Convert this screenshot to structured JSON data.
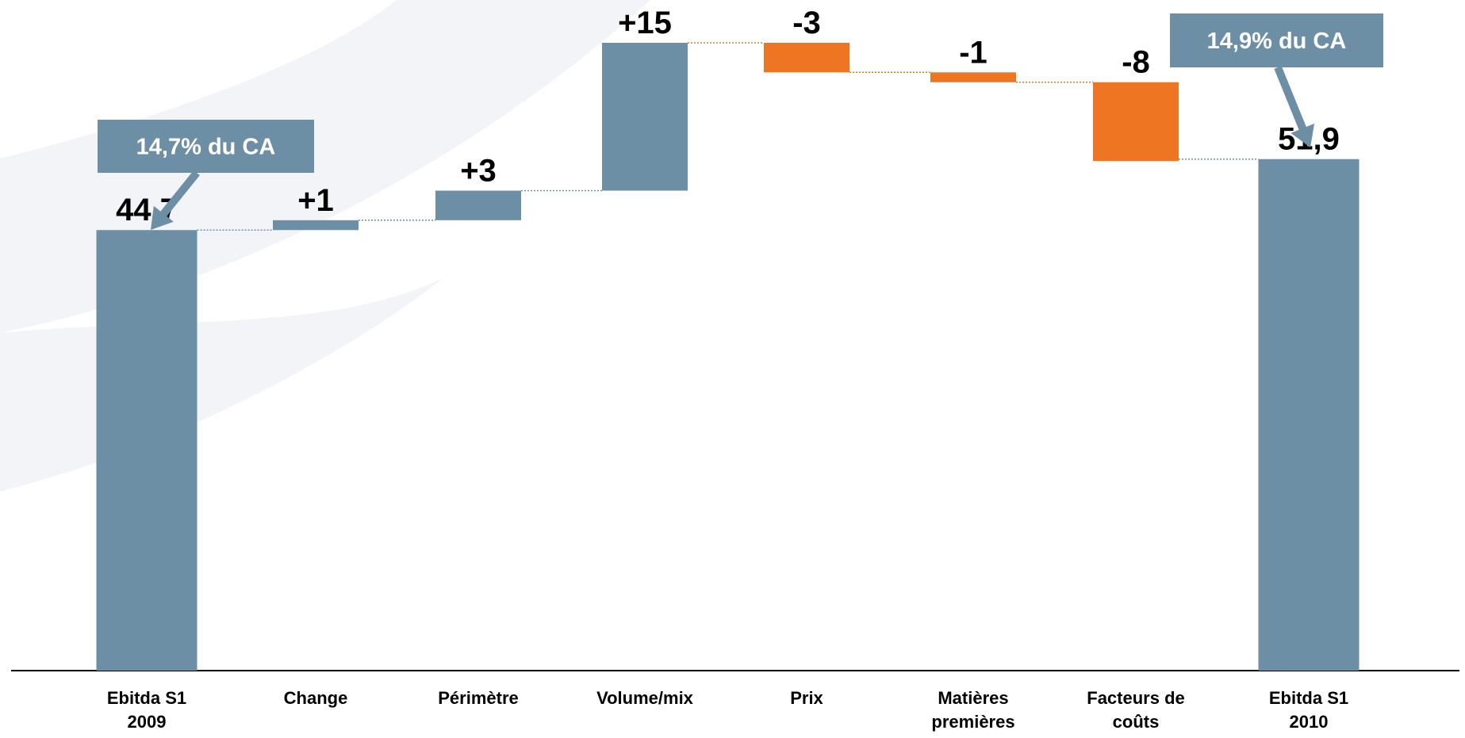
{
  "chart_data": {
    "type": "waterfall",
    "categories": [
      "Ebitda S1 2009",
      "Change",
      "Périmètre",
      "Volume/mix",
      "Prix",
      "Matières premières",
      "Facteurs de coûts",
      "Ebitda S1 2010"
    ],
    "values": [
      44.7,
      1,
      3,
      15,
      -3,
      -1,
      -8,
      51.9
    ],
    "value_labels": [
      "44,7",
      "+1",
      "+3",
      "+15",
      "-3",
      "-1",
      "-8",
      "51,9"
    ],
    "measure": [
      "absolute",
      "relative",
      "relative",
      "relative",
      "relative",
      "relative",
      "relative",
      "absolute"
    ],
    "color": "#6d8fa6",
    "negative_color": "#ee7623",
    "annotations": [
      {
        "text": "14,7% du CA",
        "category": 0
      },
      {
        "text": "14,9% du CA",
        "category": 7
      }
    ]
  }
}
